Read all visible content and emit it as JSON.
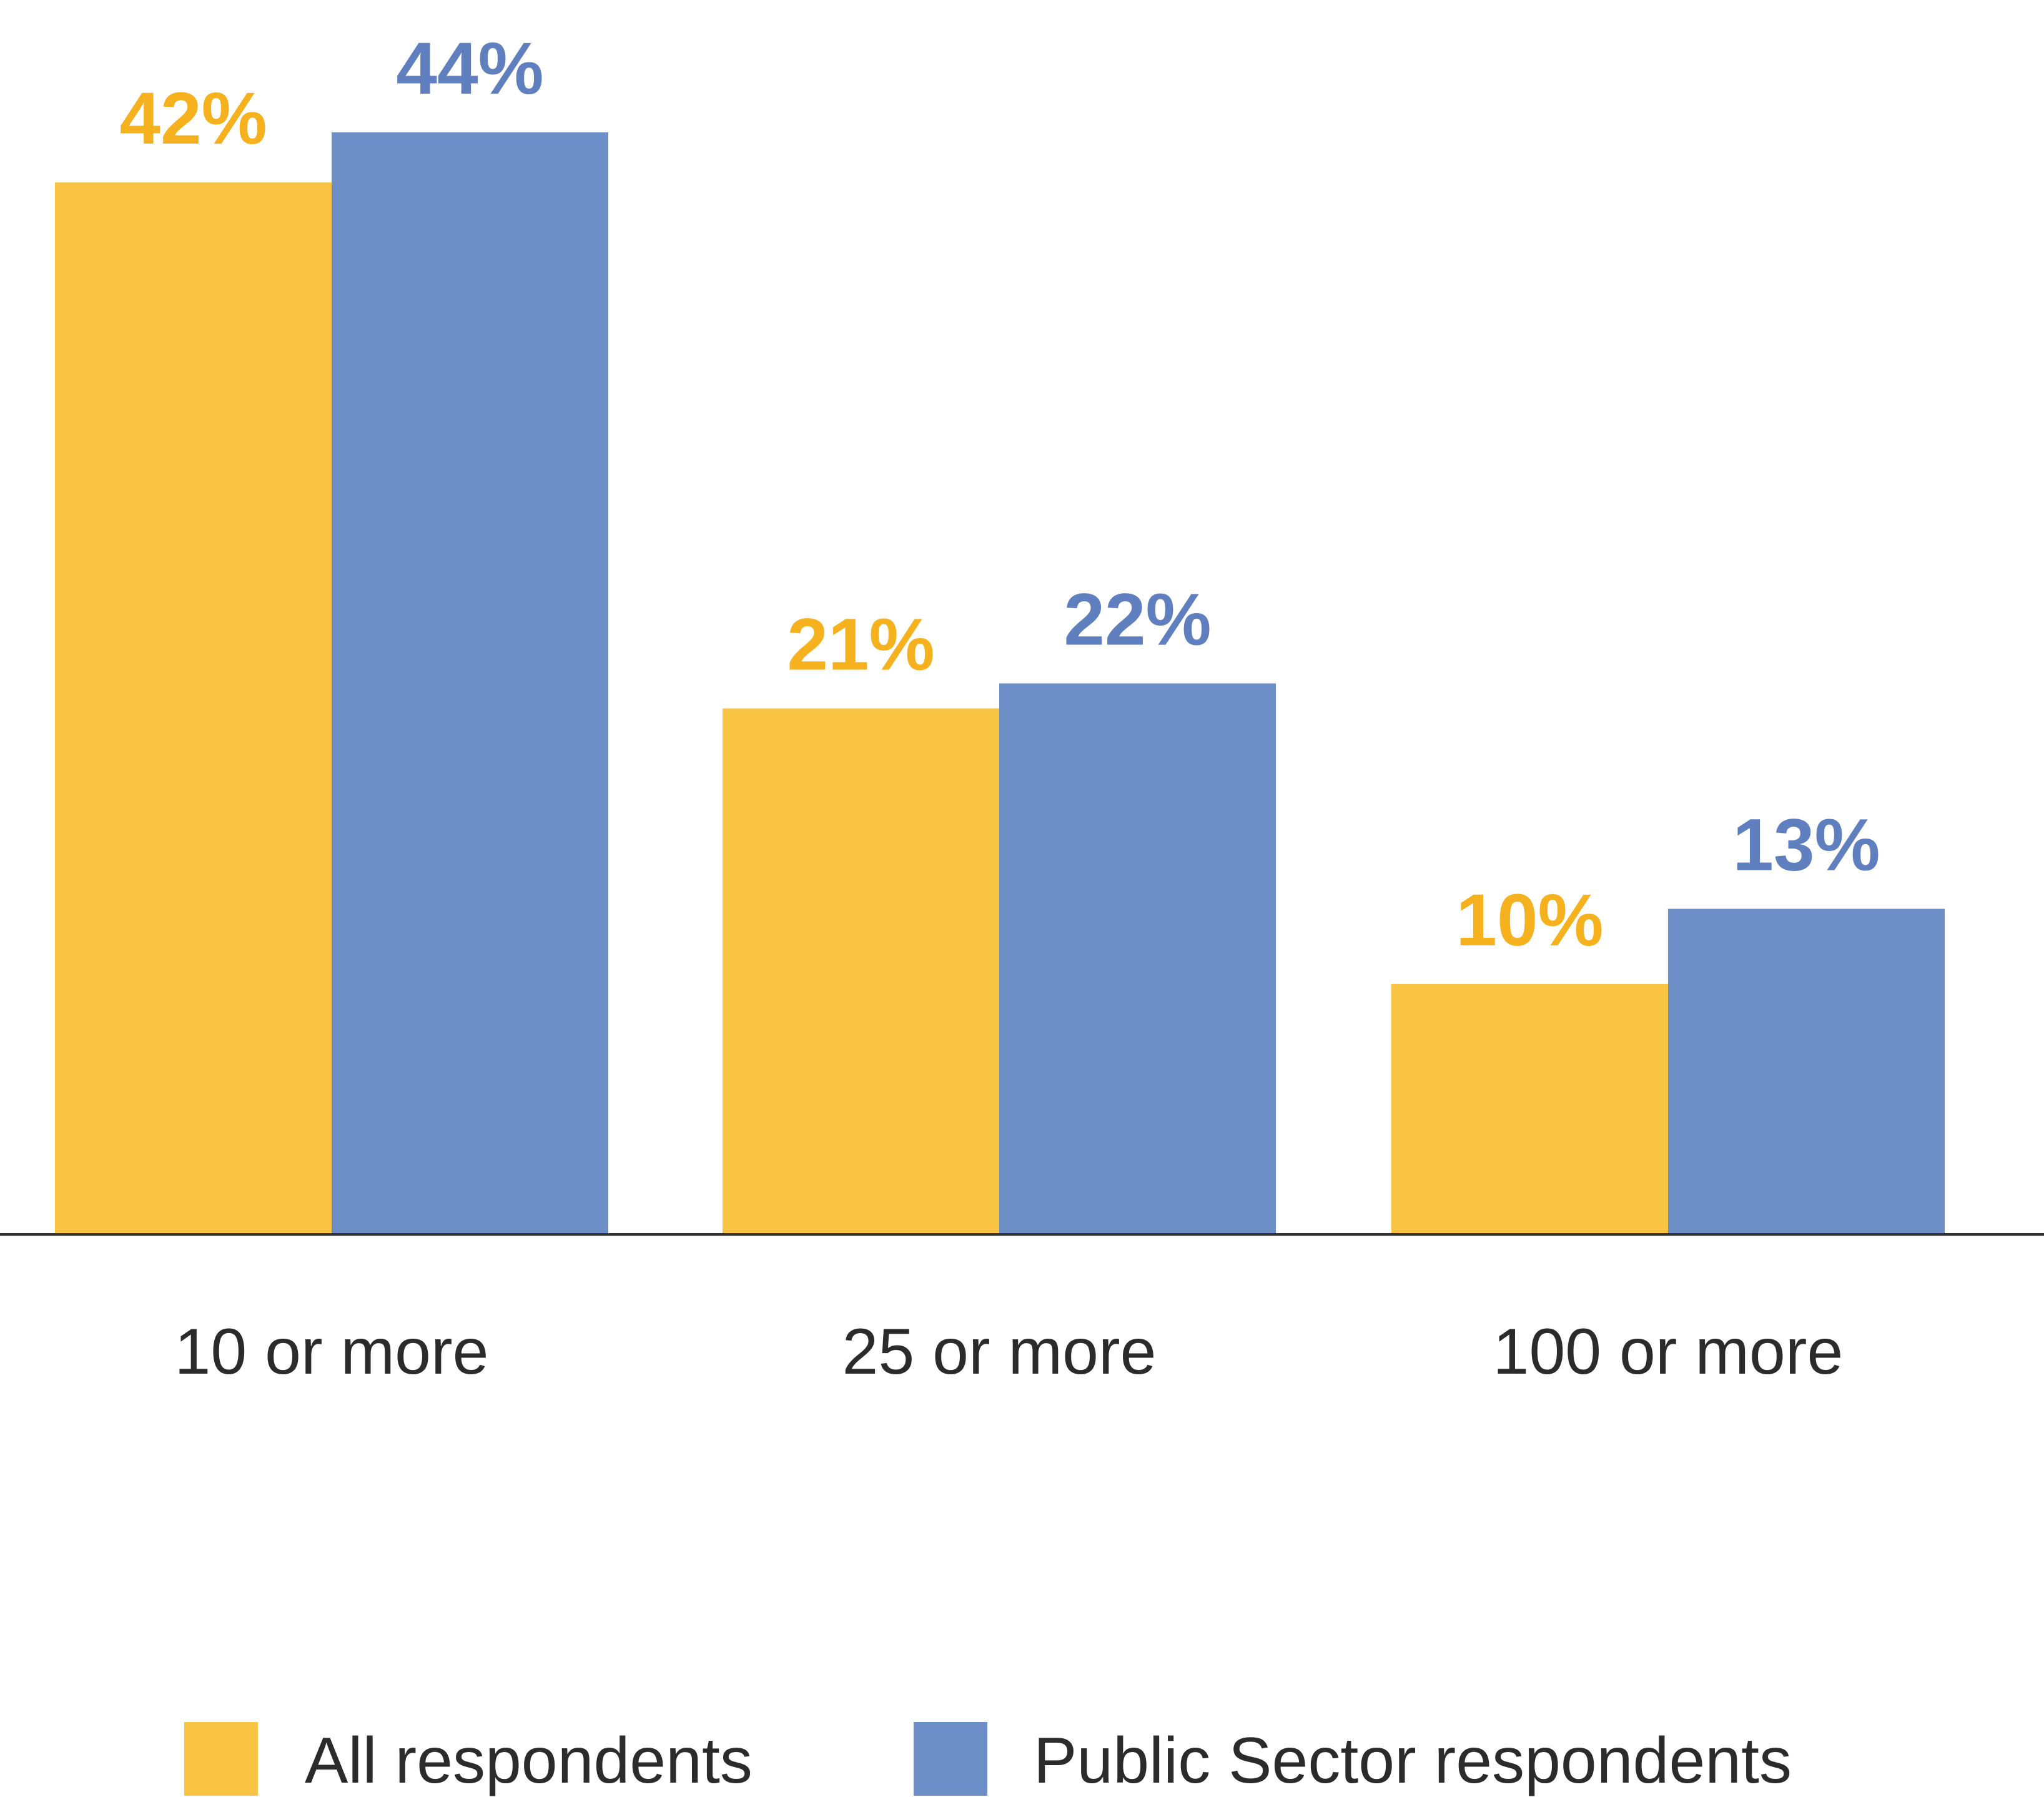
{
  "chart_data": {
    "type": "bar",
    "categories": [
      "10 or more",
      "25 or more",
      "100 or more"
    ],
    "series": [
      {
        "name": "All respondents",
        "values": [
          42,
          21,
          10
        ],
        "labels": [
          "42%",
          "21%",
          "10%"
        ],
        "color": "#F9C343",
        "label_color": "#F5B21E"
      },
      {
        "name": "Public Sector respondents",
        "values": [
          44,
          22,
          13
        ],
        "labels": [
          "44%",
          "22%",
          "13%"
        ],
        "color": "#6E8EC8",
        "label_color": "#5F7FBE"
      }
    ],
    "title": "",
    "xlabel": "",
    "ylabel": "",
    "ylim": [
      0,
      44
    ],
    "grid": false,
    "legend": "bottom",
    "axis_color": "#333333"
  }
}
